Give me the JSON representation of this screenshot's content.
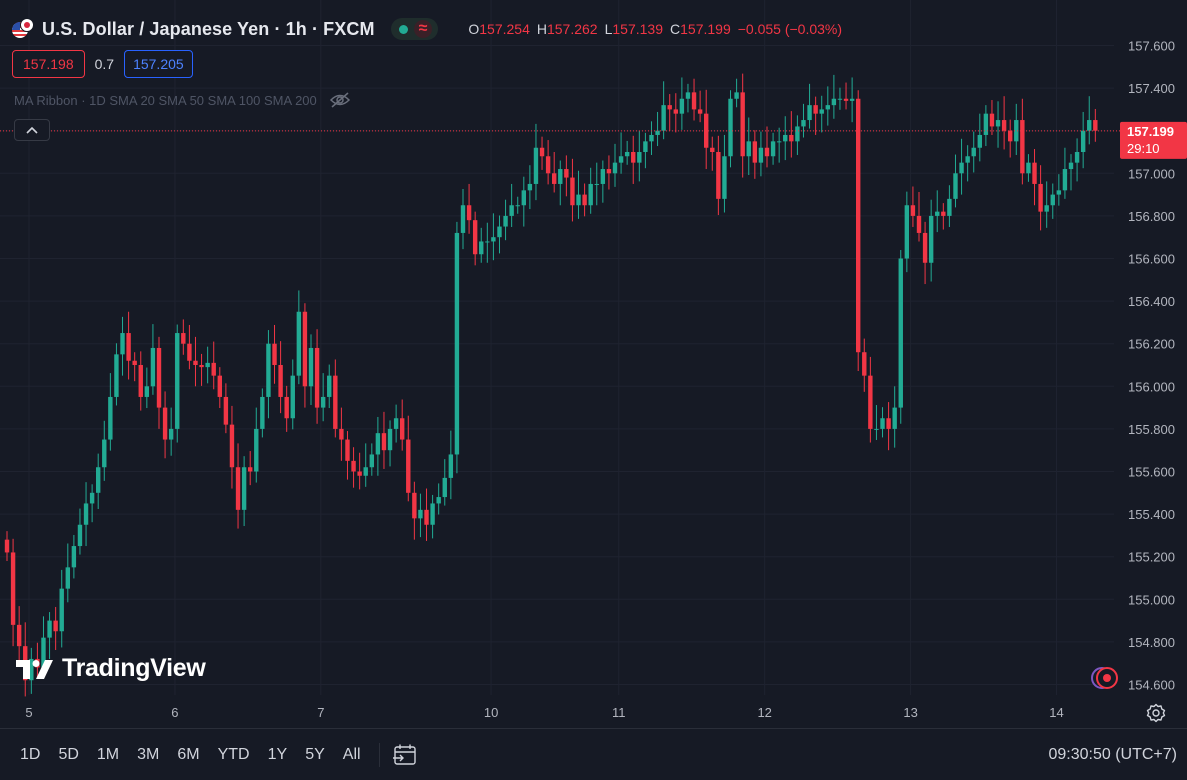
{
  "header": {
    "title": "U.S. Dollar / Japanese Yen · 1h · FXCM",
    "ohlc": [
      {
        "key": "O",
        "value": "157.254"
      },
      {
        "key": "H",
        "value": "157.262"
      },
      {
        "key": "L",
        "value": "157.139"
      },
      {
        "key": "C",
        "value": "157.199"
      }
    ],
    "change": "−0.055 (−0.03%)"
  },
  "quote": {
    "bid": "157.198",
    "spread": "0.7",
    "ask": "157.205"
  },
  "indicator": {
    "label": "MA Ribbon · 1D SMA 20 SMA 50 SMA 100 SMA 200"
  },
  "logo": {
    "text": "TradingView"
  },
  "range_buttons": [
    "1D",
    "5D",
    "1M",
    "3M",
    "6M",
    "YTD",
    "1Y",
    "5Y",
    "All"
  ],
  "clock": "09:30:50 (UTC+7)",
  "colors": {
    "up": "#22ab94",
    "down": "#f23645",
    "background": "#161a25",
    "grid": "#1f2330"
  },
  "chart_data": {
    "type": "candlestick",
    "y_ticks": [
      "157.600",
      "157.400",
      "157.200",
      "157.000",
      "156.800",
      "156.600",
      "156.400",
      "156.200",
      "156.000",
      "155.800",
      "155.600",
      "155.400",
      "155.200",
      "155.000",
      "154.800",
      "154.600"
    ],
    "ylim": [
      154.56,
      157.68
    ],
    "x_ticks": [
      {
        "label": "5",
        "index": 0
      },
      {
        "label": "6",
        "index": 24
      },
      {
        "label": "7",
        "index": 48
      },
      {
        "label": "10",
        "index": 76
      },
      {
        "label": "11",
        "index": 97
      },
      {
        "label": "12",
        "index": 121
      },
      {
        "label": "13",
        "index": 145
      },
      {
        "label": "14",
        "index": 169
      }
    ],
    "last_price": "157.199",
    "countdown": "29:10",
    "closes": [
      155.22,
      154.88,
      154.78,
      154.62,
      154.72,
      154.68,
      154.82,
      154.9,
      154.85,
      155.05,
      155.15,
      155.25,
      155.35,
      155.45,
      155.5,
      155.62,
      155.75,
      155.95,
      156.15,
      156.25,
      156.12,
      156.1,
      155.95,
      156.0,
      156.18,
      155.9,
      155.75,
      155.8,
      156.25,
      156.2,
      156.12,
      156.1,
      156.09,
      156.11,
      156.05,
      155.95,
      155.82,
      155.62,
      155.42,
      155.62,
      155.6,
      155.8,
      155.95,
      156.2,
      156.1,
      155.95,
      155.85,
      156.05,
      156.35,
      156.0,
      156.18,
      155.9,
      155.95,
      156.05,
      155.8,
      155.75,
      155.65,
      155.6,
      155.58,
      155.62,
      155.68,
      155.78,
      155.7,
      155.8,
      155.85,
      155.75,
      155.5,
      155.38,
      155.42,
      155.35,
      155.45,
      155.48,
      155.57,
      155.68,
      156.72,
      156.85,
      156.78,
      156.62,
      156.68,
      156.68,
      156.7,
      156.75,
      156.8,
      156.85,
      156.85,
      156.92,
      156.95,
      157.12,
      157.08,
      157.0,
      156.95,
      157.02,
      156.98,
      156.85,
      156.9,
      156.85,
      156.95,
      156.95,
      157.02,
      157.0,
      157.05,
      157.08,
      157.1,
      157.05,
      157.1,
      157.15,
      157.18,
      157.2,
      157.32,
      157.3,
      157.28,
      157.35,
      157.38,
      157.3,
      157.28,
      157.12,
      157.1,
      156.88,
      157.08,
      157.35,
      157.38,
      157.08,
      157.15,
      157.05,
      157.12,
      157.08,
      157.15,
      157.15,
      157.18,
      157.15,
      157.22,
      157.25,
      157.32,
      157.28,
      157.3,
      157.32,
      157.35,
      157.35,
      157.34,
      157.35,
      156.16,
      156.05,
      155.8,
      155.8,
      155.85,
      155.8,
      155.9,
      156.6,
      156.85,
      156.8,
      156.72,
      156.58,
      156.8,
      156.82,
      156.8,
      156.88,
      157.0,
      157.05,
      157.08,
      157.12,
      157.18,
      157.28,
      157.22,
      157.25,
      157.2,
      157.15,
      157.25,
      157.0,
      157.05,
      156.95,
      156.82,
      156.85,
      156.9,
      156.92,
      157.02,
      157.05,
      157.1,
      157.2,
      157.25,
      157.2
    ]
  }
}
